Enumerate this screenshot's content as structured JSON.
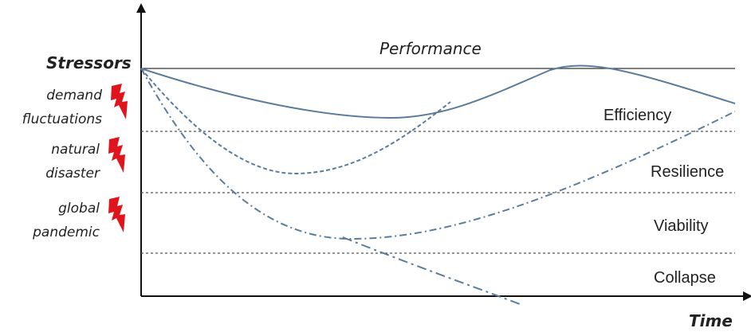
{
  "axes": {
    "y_title": "Stressors",
    "x_title": "Time"
  },
  "performance_label": "Performance",
  "zones": [
    {
      "label": "Efficiency"
    },
    {
      "label": "Resilience"
    },
    {
      "label": "Viability"
    },
    {
      "label": "Collapse"
    }
  ],
  "stressors": [
    {
      "line1": "demand",
      "line2": "fluctuations",
      "icon": "lightning-icon"
    },
    {
      "line1": "natural",
      "line2": "disaster",
      "icon": "lightning-icon"
    },
    {
      "line1": "global",
      "line2": "pandemic",
      "icon": "lightning-icon"
    }
  ],
  "colors": {
    "curve": "#5b7c9c",
    "axis": "#111111",
    "threshold": "#555555",
    "lightning": "#e0141c"
  }
}
